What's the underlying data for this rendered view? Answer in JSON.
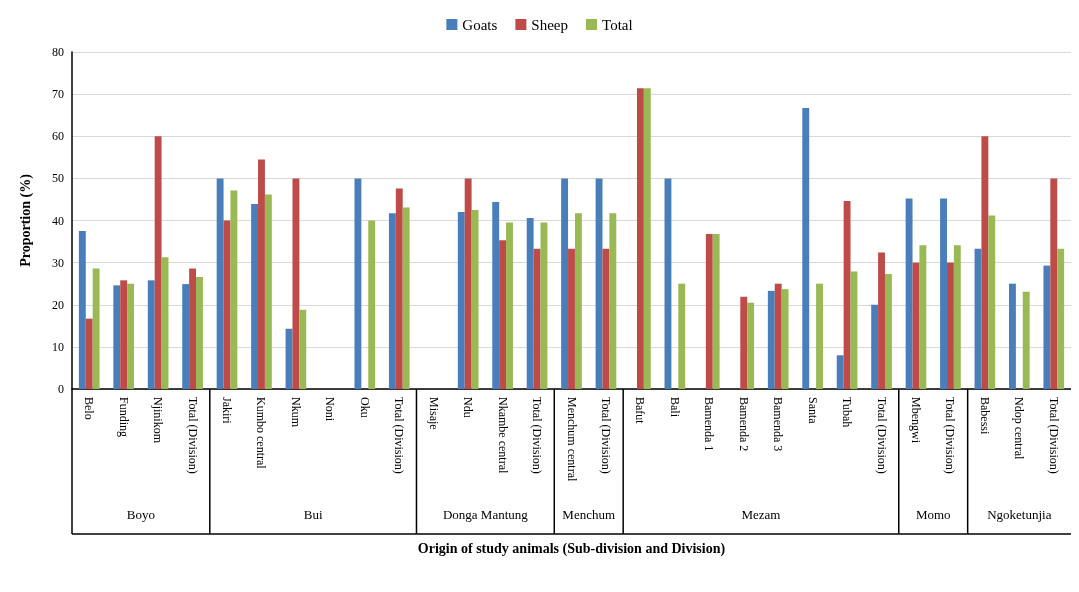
{
  "chart_data": {
    "type": "bar",
    "xlabel": "Origin of study animals (Sub-division and Division)",
    "ylabel": "Proportion (%)",
    "categories": [
      "Belo",
      "Funding",
      "Njinikom",
      "Total (Division)",
      "Jakiri",
      "Kumbo central",
      "Nkum",
      "Noni",
      "Oku",
      "Total (Division)",
      "Misaje",
      "Ndu",
      "Nkambe central",
      "Total (Division)",
      "Menchum central",
      "Total (Division)",
      "Bafut",
      "Bali",
      "Bamenda 1",
      "Bamenda 2",
      "Bamenda 3",
      "Santa",
      "Tubah",
      "Total (Division)",
      "Mbengwi",
      "Total (Division)",
      "Babessi",
      "Ndop central",
      "Total (Division)"
    ],
    "series": [
      {
        "name": "Goats",
        "color": "#4a7ebb",
        "values": [
          37.5,
          24.6,
          25.8,
          24.9,
          50,
          43.9,
          14.3,
          null,
          50,
          41.7,
          null,
          42,
          44.4,
          40.6,
          50,
          50,
          null,
          50,
          null,
          null,
          23.3,
          66.7,
          8,
          20,
          45.2,
          45.2,
          33.3,
          25,
          29.3
        ]
      },
      {
        "name": "Sheep",
        "color": "#be4b48",
        "values": [
          16.7,
          25.8,
          60,
          28.6,
          40,
          54.5,
          50,
          null,
          null,
          47.6,
          null,
          50,
          35.3,
          33.3,
          33.3,
          33.3,
          71.4,
          null,
          36.8,
          21.9,
          25,
          null,
          44.6,
          32.4,
          30,
          30,
          60,
          null,
          50
        ]
      },
      {
        "name": "Total",
        "color": "#98b954",
        "values": [
          28.6,
          25,
          31.3,
          26.6,
          47.1,
          46.2,
          18.8,
          null,
          40,
          43.1,
          null,
          42.5,
          39.5,
          39.5,
          41.7,
          41.7,
          71.4,
          25,
          36.8,
          20.5,
          23.7,
          25,
          27.9,
          27.3,
          34.1,
          34.1,
          41.2,
          23.1,
          33.3
        ]
      }
    ],
    "annotations": [
      "Boyo",
      "Bui",
      "Donga Mantung",
      "Menchum",
      "Mezam",
      "Momo",
      "Ngoketunjia"
    ],
    "ylim": [
      0,
      80
    ],
    "yticks": [
      0,
      10,
      20,
      30,
      40,
      50,
      60,
      70,
      80
    ],
    "grid": "y",
    "legend": "top"
  }
}
